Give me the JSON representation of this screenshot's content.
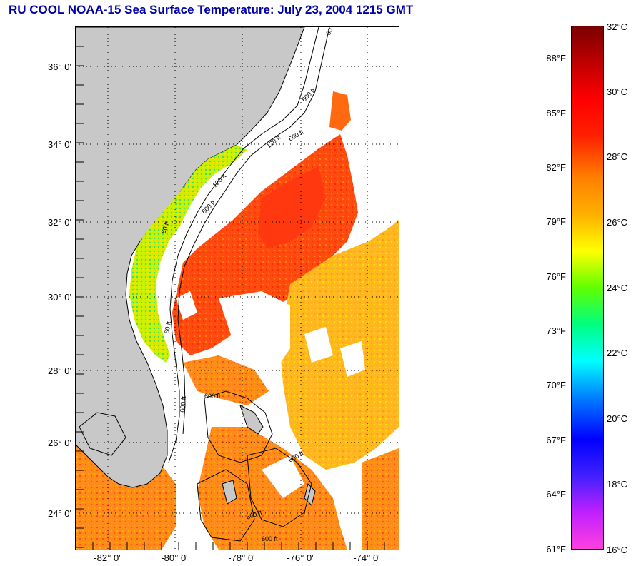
{
  "title": "RU COOL  NOAA-15  Sea Surface Temperature:  July 23, 2004 1215 GMT",
  "colors": {
    "title": "#0000a8",
    "land": "#c8c8c8",
    "no_data": "#ffffff",
    "contour": "#000000"
  },
  "map": {
    "latitude_labels": [
      "36° 0'",
      "34° 0'",
      "32° 0'",
      "30° 0'",
      "28° 0'",
      "26° 0'",
      "24° 0'"
    ],
    "longitude_labels": [
      "-82° 0'",
      "-80° 0'",
      "-78° 0'",
      "-76° 0'",
      "-74° 0'"
    ],
    "isobath_labels": [
      "60 ft",
      "120 ft",
      "600 ft",
      "600 ft",
      "120 ft",
      "600 ft",
      "60 ft",
      "60 ft",
      "600 ft",
      "600 ft",
      "600 ft",
      "600 ft",
      "600 ft"
    ]
  },
  "colorbar": {
    "gradient_colors": [
      "#ff40e0",
      "#c020ff",
      "#4020ff",
      "#0000ff",
      "#0080ff",
      "#00ffff",
      "#00ff80",
      "#60ff00",
      "#ffff00",
      "#ffb000",
      "#ff8000",
      "#ff2000",
      "#ff0000",
      "#c00000",
      "#7a0000"
    ],
    "celsius_labels": [
      "32°C",
      "30°C",
      "28°C",
      "26°C",
      "24°C",
      "22°C",
      "20°C",
      "18°C",
      "16°C"
    ],
    "fahrenheit_labels": [
      "88°F",
      "85°F",
      "82°F",
      "79°F",
      "76°F",
      "73°F",
      "70°F",
      "67°F",
      "64°F",
      "61°F"
    ]
  }
}
